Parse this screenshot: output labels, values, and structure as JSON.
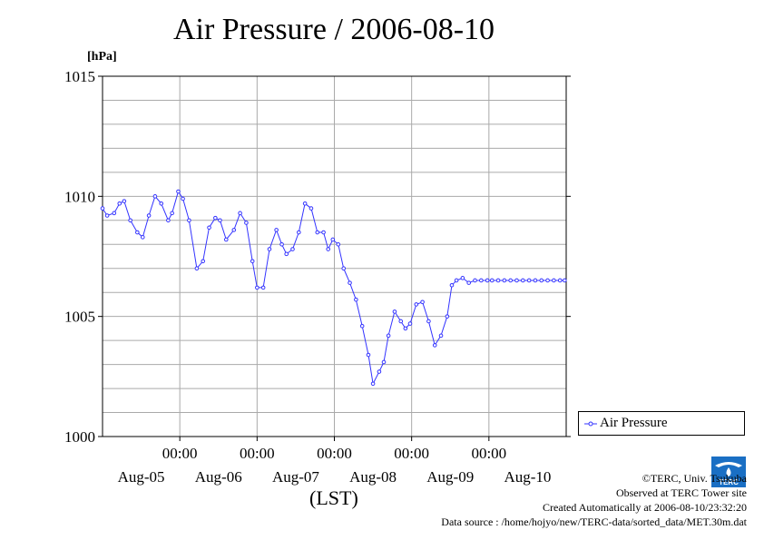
{
  "chart_data": {
    "type": "line",
    "title": "Air Pressure / 2006-08-10",
    "ylabel": "[hPa]",
    "xlabel": "(LST)",
    "ylim": [
      1000,
      1015
    ],
    "xlim": [
      0,
      6
    ],
    "yticks": [
      1000,
      1005,
      1010,
      1015
    ],
    "xticks": [
      1,
      2,
      3,
      4,
      5
    ],
    "xtick_labels": [
      "00:00",
      "00:00",
      "00:00",
      "00:00",
      "00:00"
    ],
    "day_labels": [
      "Aug-05",
      "Aug-06",
      "Aug-07",
      "Aug-08",
      "Aug-09",
      "Aug-10"
    ],
    "grid": true,
    "legend_position": "right",
    "series": [
      {
        "name": "Air Pressure",
        "color": "#3333ff",
        "marker": "circle",
        "x": [
          0,
          0.06,
          0.15,
          0.22,
          0.28,
          0.36,
          0.45,
          0.52,
          0.6,
          0.68,
          0.76,
          0.85,
          0.9,
          0.98,
          1.04,
          1.12,
          1.22,
          1.3,
          1.38,
          1.46,
          1.52,
          1.6,
          1.7,
          1.78,
          1.86,
          1.94,
          2.0,
          2.08,
          2.16,
          2.25,
          2.32,
          2.38,
          2.46,
          2.54,
          2.62,
          2.7,
          2.78,
          2.86,
          2.92,
          2.98,
          3.05,
          3.12,
          3.2,
          3.28,
          3.36,
          3.44,
          3.5,
          3.58,
          3.64,
          3.7,
          3.78,
          3.86,
          3.92,
          3.98,
          4.06,
          4.14,
          4.22,
          4.3,
          4.38,
          4.46,
          4.52,
          4.58,
          4.66,
          4.74,
          4.82,
          4.9,
          4.98,
          5.04,
          5.12,
          5.2,
          5.28,
          5.36,
          5.44,
          5.52,
          5.6,
          5.68,
          5.76,
          5.84,
          5.92,
          5.98
        ],
        "values": [
          1009.5,
          1009.2,
          1009.3,
          1009.7,
          1009.8,
          1009.0,
          1008.5,
          1008.3,
          1009.2,
          1010.0,
          1009.7,
          1009.0,
          1009.3,
          1010.2,
          1009.9,
          1009.0,
          1007.0,
          1007.3,
          1008.7,
          1009.1,
          1009.0,
          1008.2,
          1008.6,
          1009.3,
          1008.9,
          1007.3,
          1006.2,
          1006.2,
          1007.8,
          1008.6,
          1008.0,
          1007.6,
          1007.8,
          1008.5,
          1009.7,
          1009.5,
          1008.5,
          1008.5,
          1007.8,
          1008.2,
          1008.0,
          1007.0,
          1006.4,
          1005.7,
          1004.6,
          1003.4,
          1002.2,
          1002.7,
          1003.1,
          1004.2,
          1005.2,
          1004.8,
          1004.5,
          1004.7,
          1005.5,
          1005.6,
          1004.8,
          1003.8,
          1004.2,
          1005.0,
          1006.3,
          1006.5,
          1006.6,
          1006.4,
          1006.5,
          1006.5,
          1006.5,
          1006.5,
          1006.5,
          1006.5,
          1006.5,
          1006.5,
          1006.5,
          1006.5,
          1006.5,
          1006.5,
          1006.5,
          1006.5,
          1006.5,
          1006.5
        ]
      }
    ]
  },
  "footer": {
    "copyright": "©TERC, Univ. Tsukuba",
    "observed": "Observed at TERC Tower site",
    "created": "Created Automatically at 2006-08-10/23:32:20",
    "source": "Data source : /home/hojyo/new/TERC-data/sorted_data/MET.30m.dat"
  },
  "logo": {
    "icon": "terc-logo-icon",
    "text": "TERC",
    "color": "#1a6fc4"
  }
}
